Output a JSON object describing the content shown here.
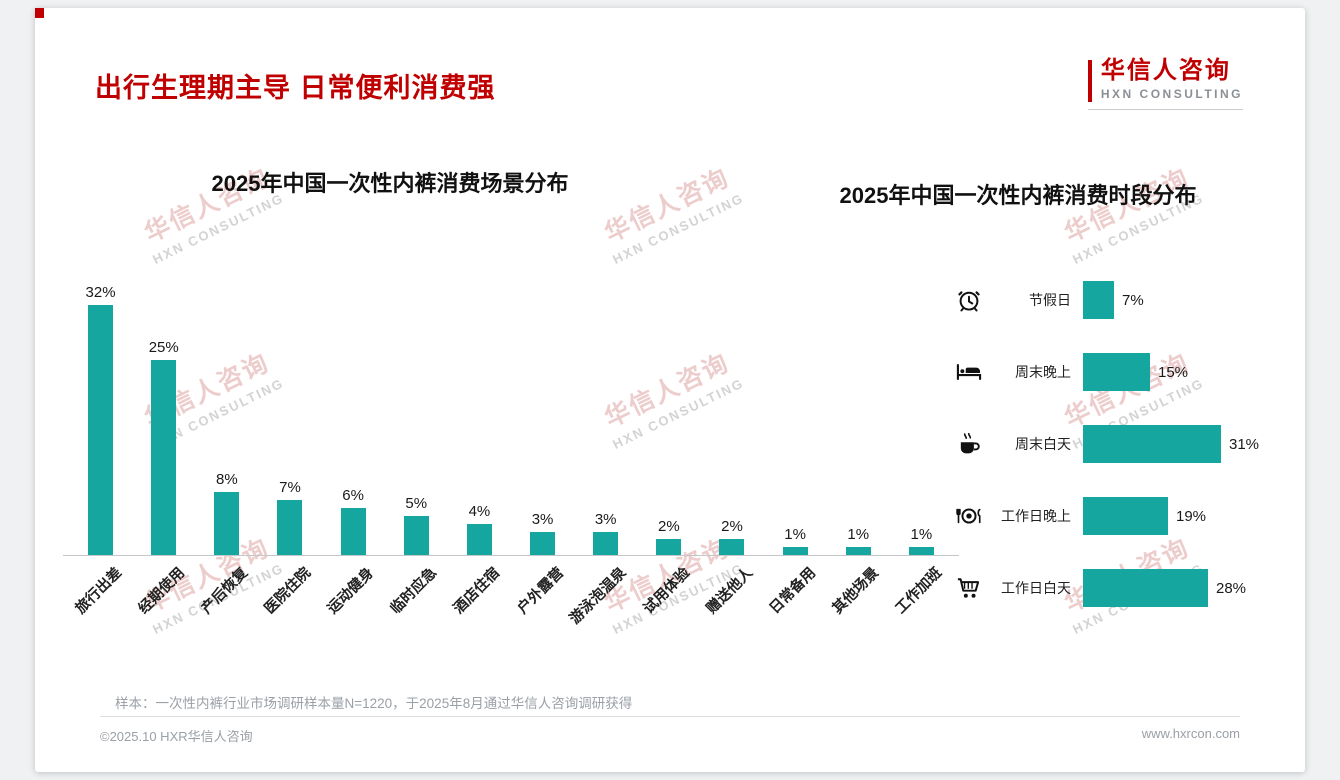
{
  "page": {
    "title": "出行生理期主导 日常便利消费强",
    "logo": {
      "cn": "华信人咨询",
      "en": "HXN CONSULTING"
    },
    "watermark": {
      "cn": "华信人咨询",
      "en": "HXN CONSULTING"
    },
    "note": "样本：一次性内裤行业市场调研样本量N=1220，于2025年8月通过华信人咨询调研获得",
    "footer": {
      "left": "©2025.10 HXR华信人咨询",
      "right": "www.hxrcon.com"
    }
  },
  "colors": {
    "accent_red": "#c00000",
    "bar_teal": "#15a69f",
    "muted_gray": "#9aa0a6"
  },
  "chart_data": [
    {
      "type": "bar",
      "orientation": "vertical",
      "title": "2025年中国一次性内裤消费场景分布",
      "categories": [
        "旅行出差",
        "经期使用",
        "产后恢复",
        "医院住院",
        "运动健身",
        "临时应急",
        "酒店住宿",
        "户外露营",
        "游泳泡温泉",
        "试用体验",
        "赠送他人",
        "日常备用",
        "其他场景",
        "工作加班"
      ],
      "values": [
        32,
        25,
        8,
        7,
        6,
        5,
        4,
        3,
        3,
        2,
        2,
        1,
        1,
        1
      ],
      "unit": "%",
      "ylim": [
        0,
        32
      ],
      "bar_color": "#15a69f",
      "grid": false,
      "value_labels": "above bars"
    },
    {
      "type": "bar",
      "orientation": "horizontal",
      "title": "2025年中国一次性内裤消费时段分布",
      "categories": [
        "节假日",
        "周末晚上",
        "周末白天",
        "工作日晚上",
        "工作日白天"
      ],
      "values": [
        7,
        15,
        31,
        19,
        28
      ],
      "icons": [
        "alarm-clock-icon",
        "bed-icon",
        "coffee-icon",
        "dinner-plate-icon",
        "shopping-cart-icon"
      ],
      "unit": "%",
      "xlim": [
        0,
        31
      ],
      "bar_color": "#15a69f",
      "grid": false,
      "value_labels": "right of bars"
    }
  ]
}
